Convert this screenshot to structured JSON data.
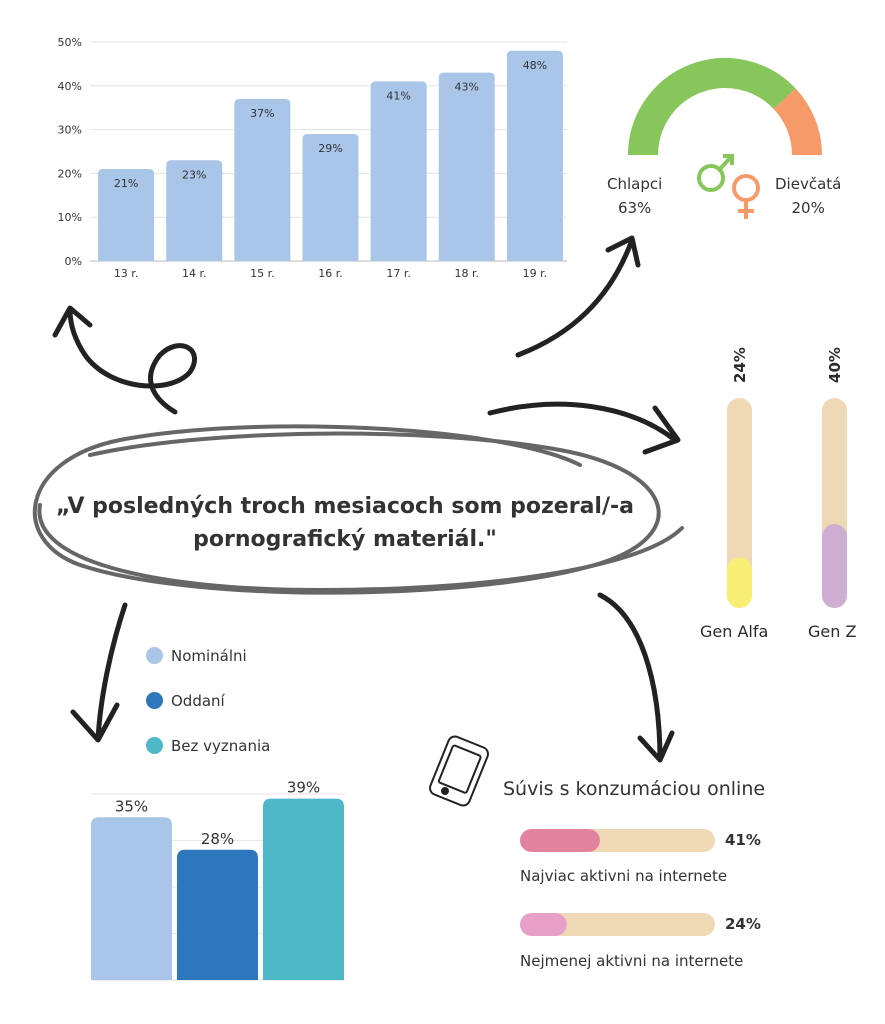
{
  "quote": {
    "line1": "„V posledných troch mesiacoch som pozeral/-a",
    "line2": "pornografický materiál.\""
  },
  "chart_data": [
    {
      "id": "age",
      "type": "bar",
      "categories": [
        "13 r.",
        "14 r.",
        "15 r.",
        "16 r.",
        "17 r.",
        "18 r.",
        "19 r."
      ],
      "values": [
        21,
        23,
        37,
        29,
        41,
        43,
        48
      ],
      "data_labels": [
        "21%",
        "23%",
        "37%",
        "29%",
        "41%",
        "43%",
        "48%"
      ],
      "yticks": [
        "0%",
        "10%",
        "20%",
        "30%",
        "40%",
        "50%"
      ],
      "ylim": [
        0,
        50
      ],
      "grid": true,
      "color": "#a9c5e8"
    },
    {
      "id": "gender",
      "type": "gauge",
      "series": [
        {
          "name": "Chlapci",
          "value": 63,
          "label": "63%",
          "color": "#86c65a",
          "icon": "male-symbol-icon"
        },
        {
          "name": "Dievčatá",
          "value": 20,
          "label": "20%",
          "color": "#f79a6a",
          "icon": "female-symbol-icon"
        }
      ]
    },
    {
      "id": "generation",
      "type": "progress-vertical",
      "track_color": "#efd8b4",
      "series": [
        {
          "name": "Gen Alfa",
          "value": 24,
          "label": "24%",
          "color": "#f9ef74"
        },
        {
          "name": "Gen Z",
          "value": 40,
          "label": "40%",
          "color": "#d0aed3"
        }
      ]
    },
    {
      "id": "religion",
      "type": "bar",
      "legend_position": "top",
      "categories": [
        "Nominálni",
        "Oddaní",
        "Bez vyznania"
      ],
      "values": [
        35,
        28,
        39
      ],
      "data_labels": [
        "35%",
        "28%",
        "39%"
      ],
      "colors": [
        "#a9c5e8",
        "#2e77bd",
        "#4fb8c8"
      ],
      "ylim": [
        0,
        40
      ],
      "grid": true
    },
    {
      "id": "online",
      "type": "progress-horizontal",
      "title": "Súvis s konzumáciou online",
      "icon": "smartphone-icon",
      "track_color": "#efd8b4",
      "series": [
        {
          "name": "Najviac aktivni na internete",
          "value": 41,
          "label": "41%",
          "color": "#e2829f"
        },
        {
          "name": "Nejmenej aktivni na internete",
          "value": 24,
          "label": "24%",
          "color": "#e7a0c8"
        }
      ]
    }
  ]
}
